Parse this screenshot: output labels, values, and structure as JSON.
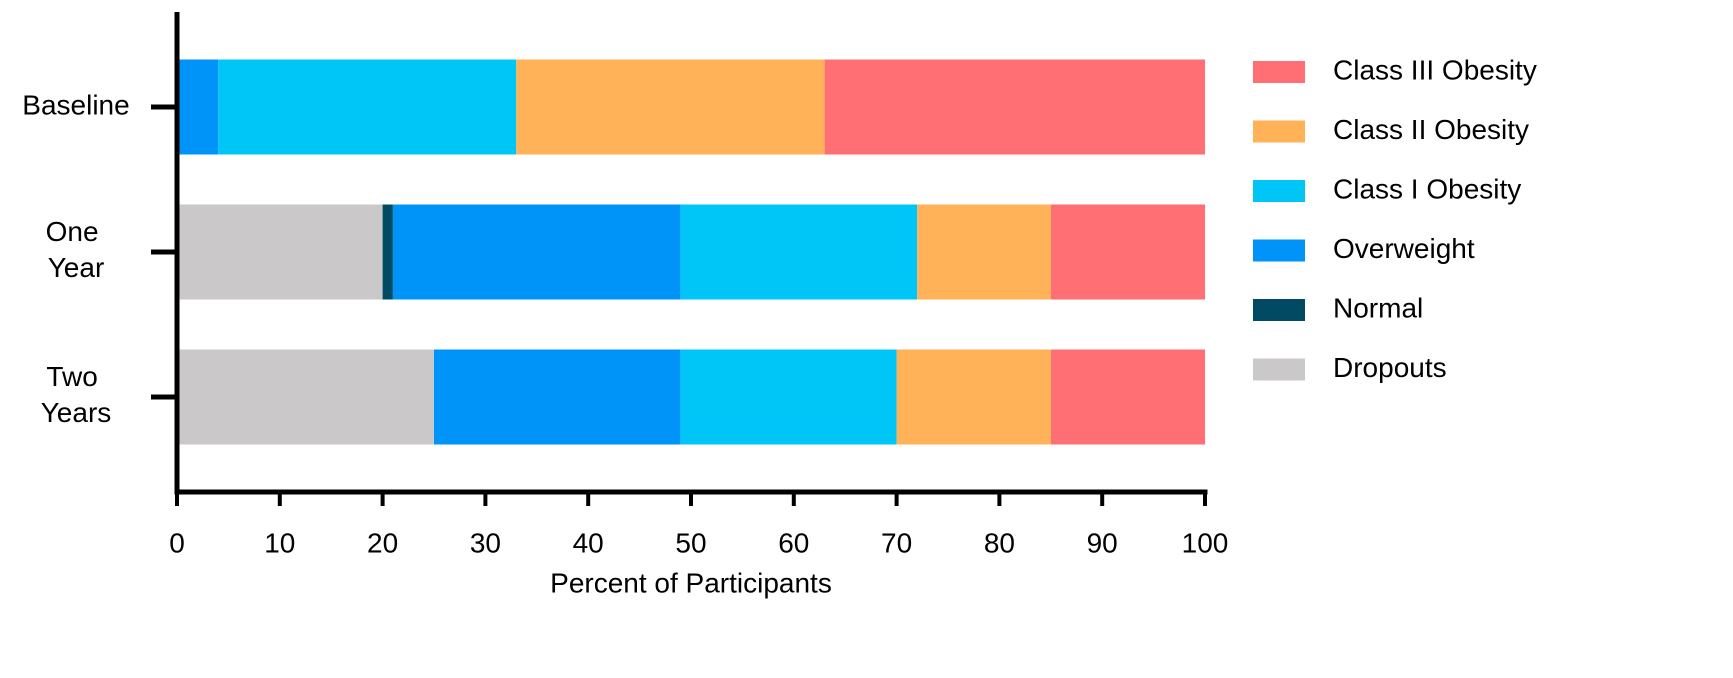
{
  "chart_data": {
    "type": "stacked_barh",
    "x_label": "Percent of Participants",
    "categories": [
      "Baseline",
      "One Year",
      "Two Years"
    ],
    "series": [
      {
        "name": "Dropouts",
        "color": "#cbc8c9",
        "values": [
          0,
          20,
          25
        ]
      },
      {
        "name": "Normal",
        "color": "#004a63",
        "values": [
          0,
          1,
          0
        ]
      },
      {
        "name": "Overweight",
        "color": "#0094f9",
        "values": [
          4,
          28,
          24
        ]
      },
      {
        "name": "Class I Obesity",
        "color": "#00c5f7",
        "values": [
          29,
          23,
          21
        ]
      },
      {
        "name": "Class II Obesity",
        "color": "#ffb257",
        "values": [
          30,
          13,
          15
        ]
      },
      {
        "name": "Class III Obesity",
        "color": "#ff6f73",
        "values": [
          37,
          15,
          15
        ]
      }
    ],
    "xlim": [
      0,
      100
    ],
    "xticks": [
      0,
      10,
      20,
      30,
      40,
      50,
      60,
      70,
      80,
      90,
      100
    ],
    "legend": "right"
  }
}
